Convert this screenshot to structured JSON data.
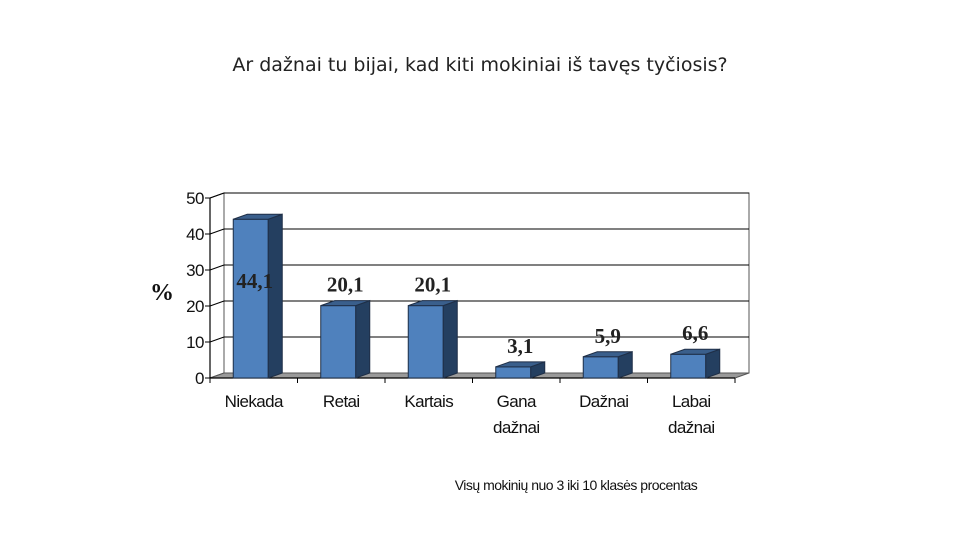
{
  "slide": {
    "title": "Ar dažnai tu bijai, kad kiti mokiniai iš tavęs tyčiosis?"
  },
  "chart_data": {
    "type": "bar",
    "categories": [
      "Niekada",
      "Retai",
      "Kartais",
      "Gana dažnai",
      "Dažnai",
      "Labai dažnai"
    ],
    "category_lines": [
      [
        "Niekada"
      ],
      [
        "Retai"
      ],
      [
        "Kartais"
      ],
      [
        "Gana",
        "dažnai"
      ],
      [
        "Dažnai"
      ],
      [
        "Labai",
        "dažnai"
      ]
    ],
    "values": [
      44.1,
      20.1,
      20.1,
      3.1,
      5.9,
      6.6
    ],
    "data_labels": [
      "44,1",
      "20,1",
      "20,1",
      "3,1",
      "5,9",
      "6,6"
    ],
    "ylabel": "%",
    "note": "Visų mokinių nuo 3 iki 10 klasės procentas",
    "ylim": [
      0,
      50
    ],
    "yticks": [
      0,
      10,
      20,
      30,
      40,
      50
    ],
    "grid": true,
    "style": "3d-bar",
    "colors": {
      "bar_front": "#4F81BD",
      "bar_side": "#243F60",
      "bar_top": "#3A5F8C",
      "grid": "#000000"
    }
  }
}
